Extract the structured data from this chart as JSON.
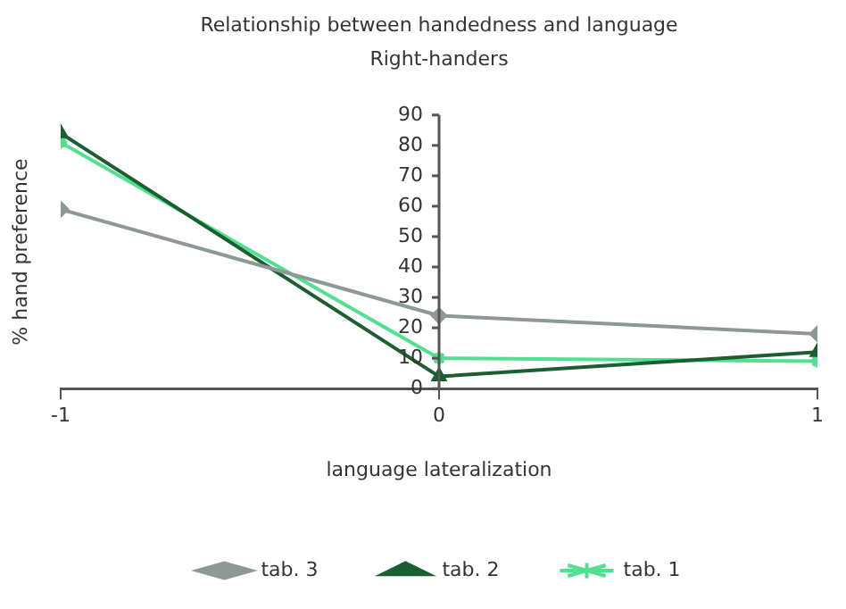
{
  "chart_data": {
    "type": "line",
    "title": "Relationship between handedness and language",
    "subtitle": "Right-handers",
    "xlabel": "language lateralization",
    "ylabel": "% hand preference",
    "x": [
      -1,
      0,
      1
    ],
    "xlim": [
      -1,
      1
    ],
    "xticks": [
      -1,
      0,
      1
    ],
    "ylim": [
      0,
      90
    ],
    "yticks": [
      0,
      10,
      20,
      30,
      40,
      50,
      60,
      70,
      80,
      90
    ],
    "grid": false,
    "legend": "bottom",
    "series": [
      {
        "name": "tab. 3",
        "color": "#8e9896",
        "marker": "diamond",
        "values": [
          59,
          24,
          18
        ]
      },
      {
        "name": "tab. 2",
        "color": "#1b5e30",
        "marker": "triangle",
        "values": [
          84,
          4,
          12
        ]
      },
      {
        "name": "tab. 1",
        "color": "#52df90",
        "marker": "cross",
        "values": [
          81,
          10,
          9
        ]
      }
    ]
  }
}
